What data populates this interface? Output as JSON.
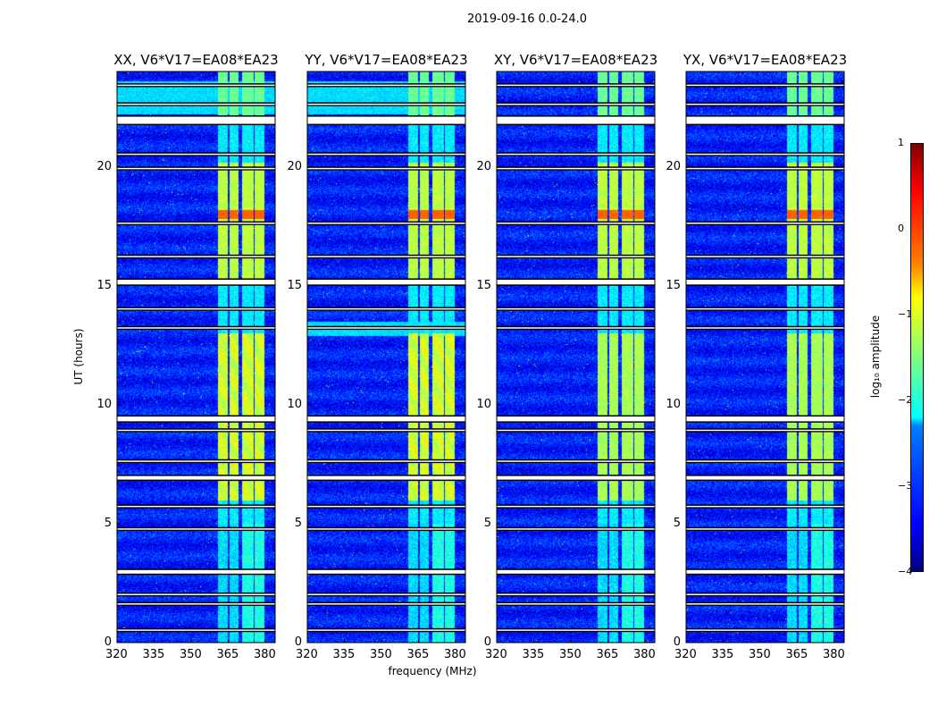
{
  "chart_data": {
    "type": "heatmap",
    "title": "2019-09-16 0.0-24.0",
    "xlabel": "frequency (MHz)",
    "ylabel": "UT (hours)",
    "xlim": [
      320,
      384
    ],
    "ylim": [
      0,
      24
    ],
    "xticks": [
      "320",
      "335",
      "350",
      "365",
      "380"
    ],
    "yticks": [
      "0",
      "5",
      "10",
      "15",
      "20"
    ],
    "xtick_values": [
      320,
      335,
      350,
      365,
      380
    ],
    "ytick_values": [
      0,
      5,
      10,
      15,
      20
    ],
    "panels": [
      {
        "title": "XX, V6*V17=EA08*EA23",
        "light_rows": [
          [
            22.2,
            23.6
          ]
        ],
        "red_time": 18.0
      },
      {
        "title": "YY, V6*V17=EA08*EA23",
        "light_rows": [
          [
            22.2,
            23.6
          ],
          [
            12.9,
            13.5
          ]
        ],
        "red_time": 18.0
      },
      {
        "title": "XY, V6*V17=EA08*EA23",
        "light_rows": [],
        "red_time": 18.0
      },
      {
        "title": "YX, V6*V17=EA08*EA23",
        "light_rows": [],
        "red_time": 18.0
      }
    ],
    "rfi_channels_mhz": [
      [
        360.5,
        364.8
      ],
      [
        365.5,
        369.0
      ],
      [
        370.5,
        375.0
      ],
      [
        375.6,
        379.6
      ]
    ],
    "rfi_time_ranges_h": [
      [
        6.0,
        13.0
      ],
      [
        15.0,
        20.2
      ],
      [
        20.3,
        21.0
      ],
      [
        22.0,
        24.0
      ],
      [
        0.0,
        5.0
      ]
    ],
    "flagged_time_ranges_h": [
      [
        21.8,
        22.1
      ],
      [
        9.3,
        9.5
      ],
      [
        2.9,
        3.05
      ],
      [
        6.85,
        7.0
      ],
      [
        15.05,
        15.25
      ],
      [
        23.4,
        23.45
      ],
      [
        22.6,
        22.65
      ],
      [
        20.5,
        20.55
      ],
      [
        19.9,
        19.95
      ],
      [
        17.6,
        17.65
      ],
      [
        16.2,
        16.25
      ],
      [
        14.0,
        14.05
      ],
      [
        13.2,
        13.25
      ],
      [
        8.9,
        8.95
      ],
      [
        7.6,
        7.65
      ],
      [
        5.7,
        5.75
      ],
      [
        4.75,
        4.8
      ],
      [
        2.0,
        2.05
      ],
      [
        1.6,
        1.65
      ],
      [
        0.5,
        0.55
      ]
    ],
    "colorbar": {
      "label": "log₁₀ amplitude",
      "range": [
        -4,
        1
      ],
      "ticks": [
        "1",
        "0",
        "−1",
        "−2",
        "−3",
        "−4"
      ],
      "tick_values": [
        1,
        0,
        -1,
        -2,
        -3,
        -4
      ],
      "colormap": "jet"
    }
  }
}
